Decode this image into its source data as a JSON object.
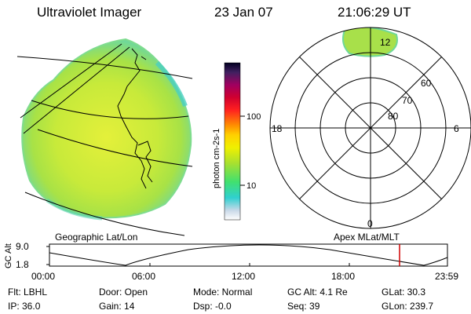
{
  "header": {
    "instrument": "Ultraviolet Imager",
    "date": "23 Jan 07",
    "time": "21:06:29 UT"
  },
  "colorbar": {
    "label": "photon cm-2s-1",
    "ticks": [
      "100",
      "10"
    ],
    "log_scale": true
  },
  "polar_plot": {
    "mlt_labels": {
      "top": "12",
      "left": "18",
      "right": "6",
      "bottom": "0"
    },
    "lat_labels": [
      "60",
      "70",
      "80"
    ]
  },
  "captions": {
    "left": "Geographic Lat/Lon",
    "right": "Apex MLat/MLT"
  },
  "altitude_plot": {
    "axis_label": "GC Alt",
    "y_ticks": [
      "9.0",
      "1.8"
    ],
    "x_ticks": [
      "00:00",
      "06:00",
      "12:00",
      "18:00",
      "23:59"
    ],
    "current_time_marker": "21:06:29",
    "marker_color": "#d00000"
  },
  "status": {
    "row1": {
      "filter": "Flt: LBHL",
      "door": "Door: Open",
      "mode": "Mode: Normal",
      "gc_alt": "GC Alt: 4.1 Re",
      "glat": "GLat: 30.3"
    },
    "row2": {
      "ip": "IP: 36.0",
      "gain": "Gain: 14",
      "dsp": "Dsp: -0.0",
      "seq": "Seq: 39",
      "glon": "GLon: 239.7"
    }
  },
  "colors": {
    "disk_fill": "#c4e83a",
    "disk_edge": "#5fd6a0",
    "line": "#000000"
  }
}
